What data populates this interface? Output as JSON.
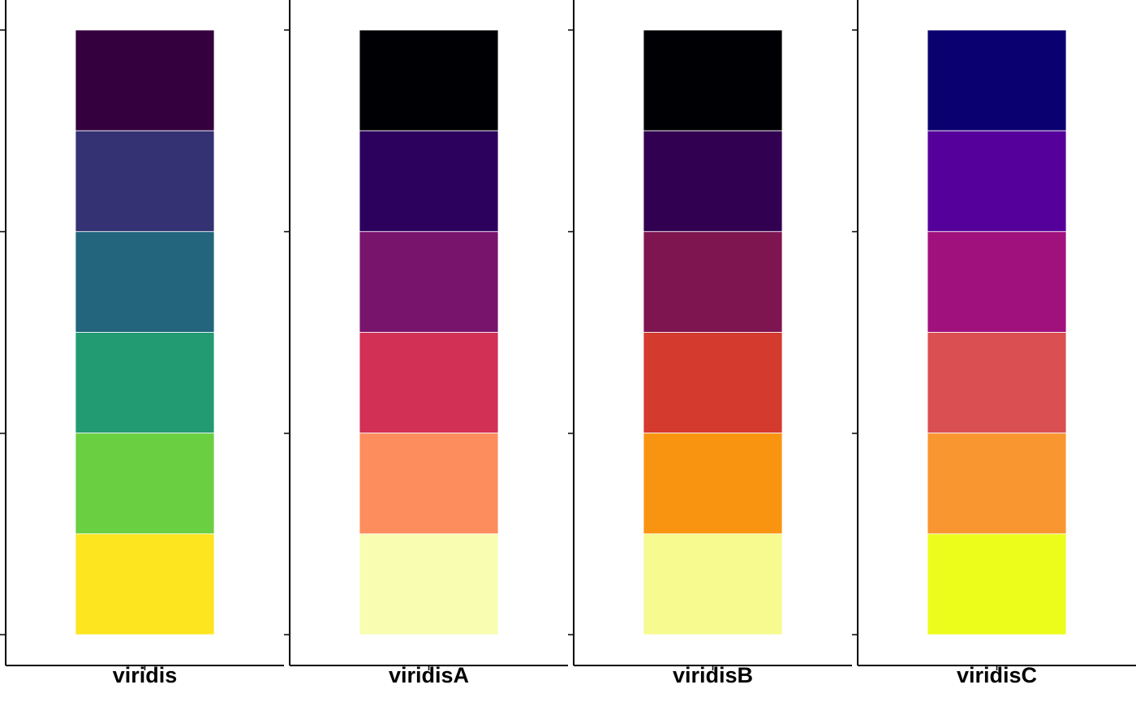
{
  "chart_data": {
    "type": "bar",
    "stacked": true,
    "orientation": "vertical",
    "facets": [
      "viridis",
      "viridisA",
      "viridisB",
      "viridisC"
    ],
    "segments_per_bar": 6,
    "y_ticks_shown": 4,
    "tick_labels_shown": false,
    "grid": false,
    "legend": "none",
    "palettes": [
      {
        "name": "viridis",
        "colors": [
          "#35003E",
          "#343273",
          "#22657D",
          "#229A72",
          "#6BCF42",
          "#FDE51F"
        ]
      },
      {
        "name": "viridisA",
        "colors": [
          "#000004",
          "#2C005D",
          "#79146D",
          "#D33055",
          "#FD8D5D",
          "#F8FDB1"
        ]
      },
      {
        "name": "viridisB",
        "colors": [
          "#000004",
          "#320051",
          "#7E1550",
          "#D43A2E",
          "#F99411",
          "#F7FB8F"
        ]
      },
      {
        "name": "viridisC",
        "colors": [
          "#0B0070",
          "#55009A",
          "#A1117E",
          "#DA4F51",
          "#F99630",
          "#ECFD1B"
        ]
      }
    ]
  }
}
